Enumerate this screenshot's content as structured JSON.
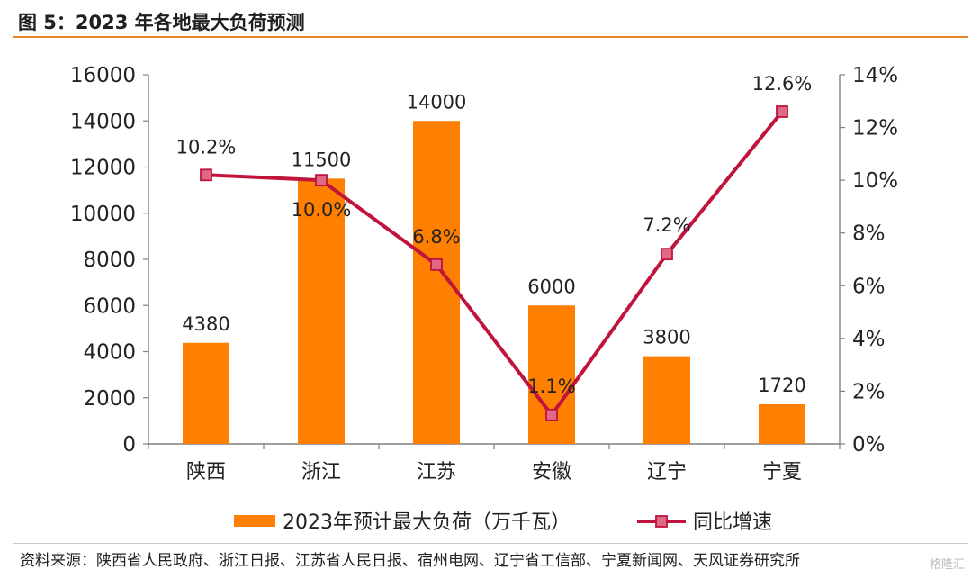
{
  "header": {
    "title": "图 5：2023 年各地最大负荷预测"
  },
  "chart_data": {
    "type": "bar",
    "title": "",
    "categories": [
      "陕西",
      "浙江",
      "江苏",
      "安徽",
      "辽宁",
      "宁夏"
    ],
    "series": [
      {
        "name": "2023年预计最大负荷（万千瓦）",
        "type": "bar",
        "axis": "left",
        "color": "#ff7f00",
        "values": [
          4380,
          11500,
          14000,
          6000,
          3800,
          1720
        ],
        "labels": [
          "4380",
          "11500",
          "14000",
          "6000",
          "3800",
          "1720"
        ]
      },
      {
        "name": "同比增速",
        "type": "line",
        "axis": "right",
        "color": "#c0143c",
        "values": [
          10.2,
          10.0,
          6.8,
          1.1,
          7.2,
          12.6
        ],
        "labels": [
          "10.2%",
          "10.0%",
          "6.8%",
          "1.1%",
          "7.2%",
          "12.6%"
        ]
      }
    ],
    "y_left": {
      "range": [
        0,
        16000
      ],
      "ticks": [
        0,
        2000,
        4000,
        6000,
        8000,
        10000,
        12000,
        14000,
        16000
      ],
      "tick_labels": [
        "0",
        "2000",
        "4000",
        "6000",
        "8000",
        "10000",
        "12000",
        "14000",
        "16000"
      ]
    },
    "y_right": {
      "range": [
        0,
        14
      ],
      "ticks": [
        0,
        2,
        4,
        6,
        8,
        10,
        12,
        14
      ],
      "tick_labels": [
        "0%",
        "2%",
        "4%",
        "6%",
        "8%",
        "10%",
        "12%",
        "14%"
      ]
    },
    "xlabel": "",
    "grid": false,
    "legend": "bottom"
  },
  "footer": {
    "source": "资料来源：陕西省人民政府、浙江日报、江苏省人民日报、宿州电网、辽宁省工信部、宁夏新闻网、天风证券研究所"
  },
  "watermark": "格隆汇"
}
